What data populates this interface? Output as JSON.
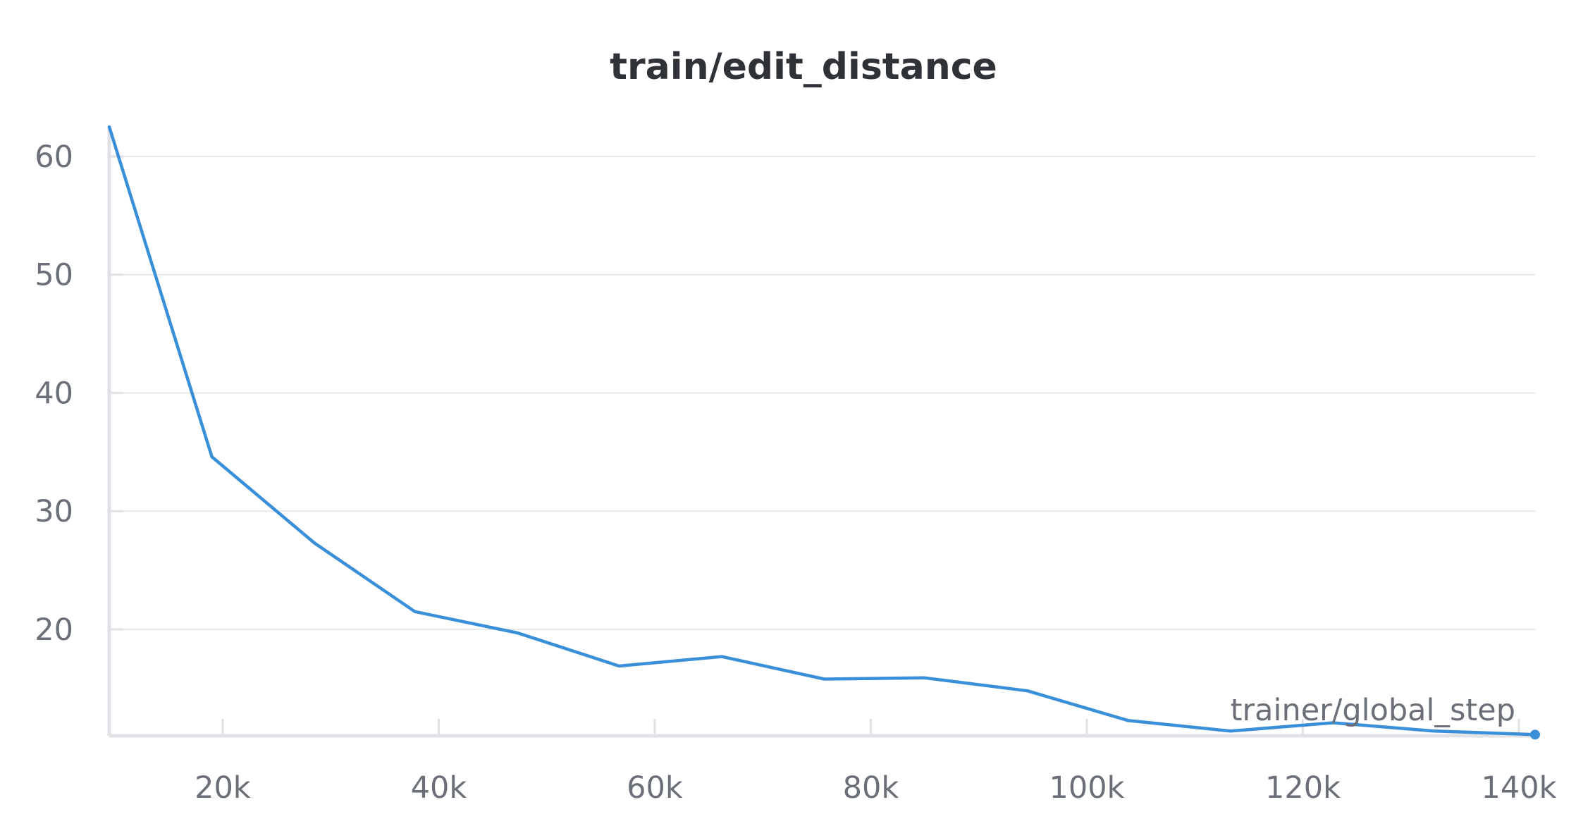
{
  "chart_data": {
    "type": "line",
    "title": "train/edit_distance",
    "xlabel": "trainer/global_step",
    "ylabel": "",
    "xlim": [
      9500,
      141500
    ],
    "ylim": [
      11,
      62.5
    ],
    "x_ticks": [
      20000,
      40000,
      60000,
      80000,
      100000,
      120000,
      140000
    ],
    "x_tick_labels": [
      "20k",
      "40k",
      "60k",
      "80k",
      "100k",
      "120k",
      "140k"
    ],
    "y_ticks": [
      20,
      30,
      40,
      50,
      60
    ],
    "y_tick_labels": [
      "20",
      "30",
      "40",
      "50",
      "60"
    ],
    "grid": true,
    "series": [
      {
        "color": "#3a8fd9",
        "x": [
          9500,
          19000,
          28500,
          37800,
          47300,
          56700,
          66200,
          75700,
          85000,
          94500,
          103800,
          113300,
          122800,
          132200,
          141500
        ],
        "y": [
          62.5,
          34.6,
          27.3,
          21.5,
          19.7,
          16.9,
          17.7,
          15.8,
          15.9,
          14.8,
          12.3,
          11.4,
          12.1,
          11.4,
          11.1
        ]
      }
    ]
  },
  "colors": {
    "line": "#3a8fd9",
    "grid": "#e8e9ec",
    "axis": "#e1e2e5",
    "text": "#6b6f78",
    "title": "#2f3338"
  }
}
